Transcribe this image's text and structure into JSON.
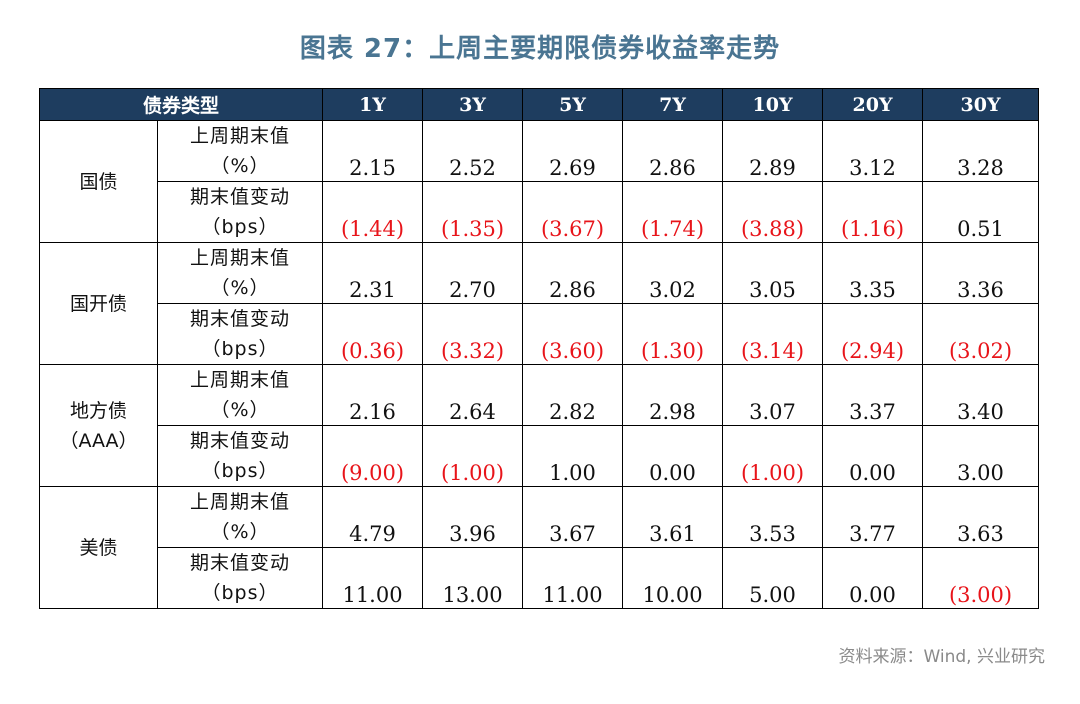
{
  "title": "图表 27：上周主要期限债券收益率走势",
  "header": {
    "category_label": "债券类型",
    "tenors": [
      "1Y",
      "3Y",
      "5Y",
      "7Y",
      "10Y",
      "20Y",
      "30Y"
    ]
  },
  "metric_labels": {
    "level_line1": "上周期末值",
    "level_line2": "（%）",
    "change_line1": "期末值变动",
    "change_line2": "（bps）"
  },
  "groups": [
    {
      "name_line1": "国债",
      "name_line2": "",
      "level": [
        "2.15",
        "2.52",
        "2.69",
        "2.86",
        "2.89",
        "3.12",
        "3.28"
      ],
      "change": [
        "(1.44)",
        "(1.35)",
        "(3.67)",
        "(1.74)",
        "(3.88)",
        "(1.16)",
        "0.51"
      ]
    },
    {
      "name_line1": "国开债",
      "name_line2": "",
      "level": [
        "2.31",
        "2.70",
        "2.86",
        "3.02",
        "3.05",
        "3.35",
        "3.36"
      ],
      "change": [
        "(0.36)",
        "(3.32)",
        "(3.60)",
        "(1.30)",
        "(3.14)",
        "(2.94)",
        "(3.02)"
      ]
    },
    {
      "name_line1": "地方债",
      "name_line2": "（AAA）",
      "level": [
        "2.16",
        "2.64",
        "2.82",
        "2.98",
        "3.07",
        "3.37",
        "3.40"
      ],
      "change": [
        "(9.00)",
        "(1.00)",
        "1.00",
        "0.00",
        "(1.00)",
        "0.00",
        "3.00"
      ]
    },
    {
      "name_line1": "美债",
      "name_line2": "",
      "level": [
        "4.79",
        "3.96",
        "3.67",
        "3.61",
        "3.53",
        "3.77",
        "3.63"
      ],
      "change": [
        "11.00",
        "13.00",
        "11.00",
        "10.00",
        "5.00",
        "0.00",
        "(3.00)"
      ]
    }
  ],
  "source": "资料来源：Wind, 兴业研究",
  "colors": {
    "title": "#4a7592",
    "header_bg": "#1e3d5f",
    "header_text": "#ffffff",
    "negative": "#e8141a",
    "text": "#111111",
    "source": "#8a8a8a"
  }
}
